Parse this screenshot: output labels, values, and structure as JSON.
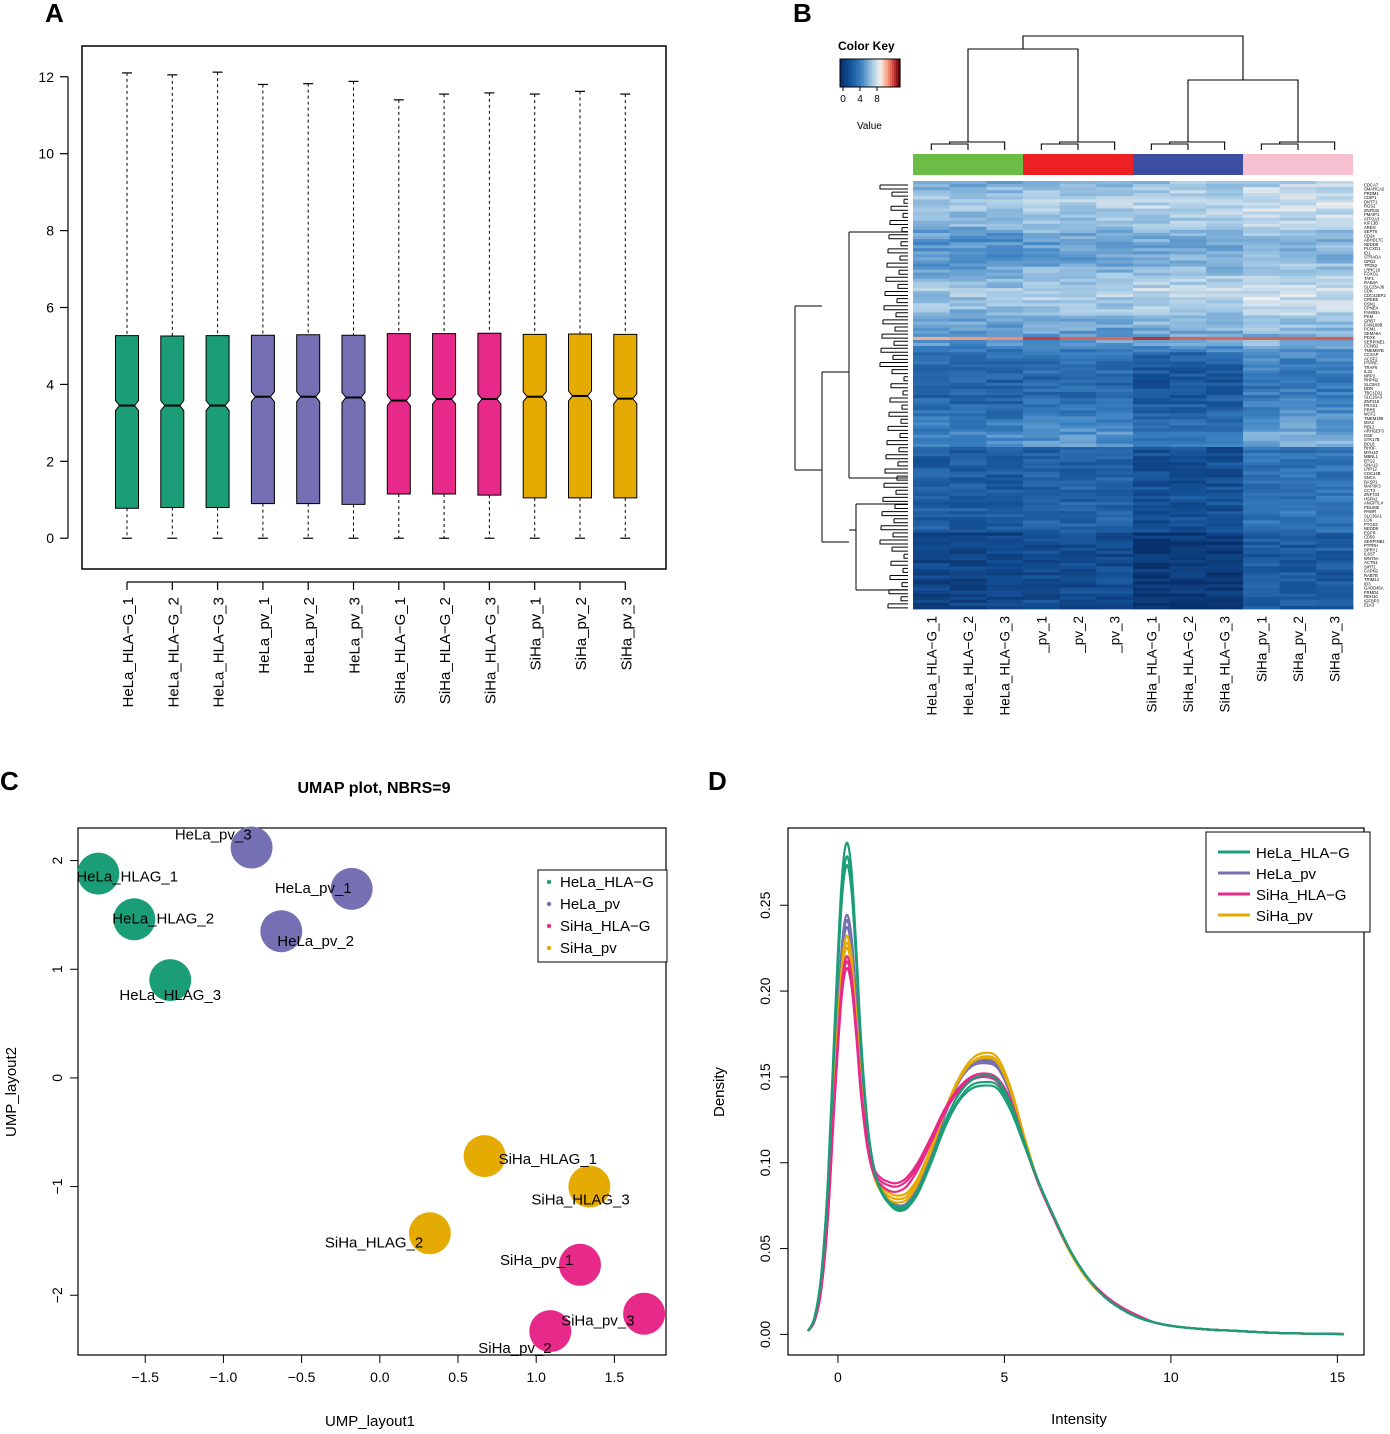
{
  "panels": [
    {
      "label": "A"
    },
    {
      "label": "B"
    },
    {
      "label": "C"
    },
    {
      "label": "D"
    }
  ],
  "colors": {
    "HeLa_HLA-G": "#1b9e77",
    "HeLa_pv": "#7570b3",
    "SiHa_HLA-G": "#e7298a",
    "SiHa_pv": "#e6ab02",
    "axis": "#000000",
    "dendro": "#000000"
  },
  "chart_data": [
    {
      "panel": "A",
      "type": "bar",
      "subtype": "notched-boxplot",
      "title": "",
      "xlabel": "",
      "ylabel": "",
      "ylim": [
        -0.8,
        12.8
      ],
      "yticks": [
        0,
        2,
        4,
        6,
        8,
        10,
        12
      ],
      "boxes": [
        {
          "name": "HeLa_HLA−G_1",
          "group": "HeLa_HLA-G",
          "min": 0,
          "q1": 0.78,
          "median": 3.45,
          "q3": 5.27,
          "max": 12.1
        },
        {
          "name": "HeLa_HLA−G_2",
          "group": "HeLa_HLA-G",
          "min": 0,
          "q1": 0.8,
          "median": 3.45,
          "q3": 5.26,
          "max": 12.05
        },
        {
          "name": "HeLa_HLA−G_3",
          "group": "HeLa_HLA-G",
          "min": 0,
          "q1": 0.8,
          "median": 3.45,
          "q3": 5.27,
          "max": 12.12
        },
        {
          "name": "HeLa_pv_1",
          "group": "HeLa_pv",
          "min": 0,
          "q1": 0.9,
          "median": 3.68,
          "q3": 5.28,
          "max": 11.8
        },
        {
          "name": "HeLa_pv_2",
          "group": "HeLa_pv",
          "min": 0,
          "q1": 0.9,
          "median": 3.68,
          "q3": 5.29,
          "max": 11.82
        },
        {
          "name": "HeLa_pv_3",
          "group": "HeLa_pv",
          "min": 0,
          "q1": 0.88,
          "median": 3.66,
          "q3": 5.28,
          "max": 11.88
        },
        {
          "name": "SiHa_HLA−G_1",
          "group": "SiHa_HLA-G",
          "min": 0,
          "q1": 1.15,
          "median": 3.58,
          "q3": 5.32,
          "max": 11.4
        },
        {
          "name": "SiHa_HLA−G_2",
          "group": "SiHa_HLA-G",
          "min": 0,
          "q1": 1.15,
          "median": 3.62,
          "q3": 5.32,
          "max": 11.55
        },
        {
          "name": "SiHa_HLA−G_3",
          "group": "SiHa_HLA-G",
          "min": 0,
          "q1": 1.12,
          "median": 3.62,
          "q3": 5.33,
          "max": 11.58
        },
        {
          "name": "SiHa_pv_1",
          "group": "SiHa_pv",
          "min": 0,
          "q1": 1.05,
          "median": 3.68,
          "q3": 5.3,
          "max": 11.55
        },
        {
          "name": "SiHa_pv_2",
          "group": "SiHa_pv",
          "min": 0,
          "q1": 1.05,
          "median": 3.7,
          "q3": 5.31,
          "max": 11.62
        },
        {
          "name": "SiHa_pv_3",
          "group": "SiHa_pv",
          "min": 0,
          "q1": 1.05,
          "median": 3.63,
          "q3": 5.3,
          "max": 11.55
        }
      ]
    },
    {
      "panel": "B",
      "type": "heatmap",
      "color_key": {
        "title": "Color Key",
        "ticks": [
          "0",
          "4",
          "8"
        ],
        "label": "Value",
        "min": 0,
        "max": 10
      },
      "column_groups": [
        {
          "group": "HeLa_HLA-G",
          "color": "#6cbd45"
        },
        {
          "group": "HeLa_pv",
          "color": "#ed2124"
        },
        {
          "group": "SiHa_HLA-G",
          "color": "#3b4ea1"
        },
        {
          "group": "SiHa_pv",
          "color": "#f7c0d1"
        }
      ],
      "columns": [
        "HeLa_HLA−G_1",
        "HeLa_HLA−G_2",
        "HeLa_HLA−G_3",
        "_pv_1",
        "_pv_2",
        "_pv_3",
        "SiHa_HLA−G_1",
        "SiHa_HLA−G_2",
        "SiHa_HLA−G_3",
        "SiHa_pv_1",
        "SiHa_pv_2",
        "SiHa_pv_3"
      ],
      "row_labels": [
        "CDCA7",
        "SMARCA2",
        "PRDM1",
        "CDIP1",
        "DNTT1",
        "RGS2",
        "ZNF532",
        "PMAIP1",
        "ATP2A3",
        "KIF13B",
        "AREG",
        "SEPT6",
        "CD24",
        "ABHD17C",
        "NEDD9",
        "PLCXD1",
        "ID1",
        "STRADA",
        "GPD2",
        "TPD52",
        "LRRC19",
        "FOXO1",
        "TAF1",
        "RAB4A",
        "SLC25A36",
        "CDK",
        "CDC42EP2",
        "CREB5",
        "DSN1",
        "CPNE4",
        "FAM83A",
        "PKM",
        "GRB7",
        "FAM169B",
        "PCM1",
        "SEMA6A",
        "PDXK",
        "SERPINE1",
        "CCNB1",
        "TMEM87B",
        "CCSAP",
        "ACSF2",
        "PTPRF",
        "TRAF6",
        "IL32",
        "NRP2",
        "RHPN2",
        "SLC9A3",
        "DDN",
        "TBC1D31",
        "SLC16A3",
        "ZNF318",
        "FRAS1",
        "PRR5",
        "MCF2",
        "TMEM189",
        "MIA3",
        "RBL2",
        "ARHGEF3",
        "DSE",
        "STK17B",
        "BCL6",
        "RHOF",
        "MYH10",
        "MBNL1",
        "BTG2",
        "GNA12",
        "LRP12",
        "CDC14B",
        "SNCA",
        "BASP1",
        "MAP3K3",
        "CCT3",
        "ZNF703",
        "HSPA2",
        "ANGPTL4",
        "PDLIM5",
        "PAWR",
        "SLC36A1",
        "LOX",
        "PTGS2",
        "NEDD9",
        "EGFR",
        "CD59",
        "SERPINB1",
        "PTPRH",
        "SPRY1",
        "IL6ST",
        "WNT5A",
        "ACTN1",
        "SIRT1",
        "CAPN2",
        "RAB7B",
        "TRIM14",
        "ID3",
        "GADD45A",
        "FRMD4",
        "RDH10",
        "IGFBP3",
        "ELK3"
      ]
    },
    {
      "panel": "C",
      "type": "scatter",
      "title": "UMAP plot, NBRS=9",
      "xlabel": "UMP_layout1",
      "ylabel": "UMP_layout2",
      "xlim": [
        -1.93,
        1.83
      ],
      "ylim": [
        -2.55,
        2.3
      ],
      "xticks": [
        "−1.5",
        "−1.0",
        "−0.5",
        "0.0",
        "0.5",
        "1.0",
        "1.5"
      ],
      "yticks": [
        "−2",
        "−1",
        "0",
        "1",
        "2"
      ],
      "legend": {
        "placement": "top-right",
        "entries": [
          "HeLa_HLA−G",
          "HeLa_pv",
          "SiHa_HLA−G",
          "SiHa_pv"
        ]
      },
      "points": [
        {
          "label": "HeLa_HLAG_1",
          "group": "HeLa_HLA-G",
          "x": -1.8,
          "y": 1.88
        },
        {
          "label": "HeLa_HLAG_2",
          "group": "HeLa_HLA-G",
          "x": -1.57,
          "y": 1.46
        },
        {
          "label": "HeLa_HLAG_3",
          "group": "HeLa_HLA-G",
          "x": -1.34,
          "y": 0.9
        },
        {
          "label": "HeLa_pv_3",
          "group": "HeLa_pv",
          "x": -0.82,
          "y": 2.12
        },
        {
          "label": "HeLa_pv_1",
          "group": "HeLa_pv",
          "x": -0.18,
          "y": 1.74
        },
        {
          "label": "HeLa_pv_2",
          "group": "HeLa_pv",
          "x": -0.63,
          "y": 1.35
        },
        {
          "label": "SiHa_HLAG_1",
          "group": "SiHa_pv",
          "x": 0.67,
          "y": -0.72
        },
        {
          "label": "SiHa_HLAG_3",
          "group": "SiHa_pv",
          "x": 1.34,
          "y": -1.0
        },
        {
          "label": "SiHa_HLAG_2",
          "group": "SiHa_pv",
          "x": 0.32,
          "y": -1.43
        },
        {
          "label": "SiHa_pv_1",
          "group": "SiHa_HLA-G",
          "x": 1.28,
          "y": -1.72
        },
        {
          "label": "SiHa_pv_3",
          "group": "SiHa_HLA-G",
          "x": 1.69,
          "y": -2.17
        },
        {
          "label": "SiHa_pv_2",
          "group": "SiHa_HLA-G",
          "x": 1.09,
          "y": -2.33
        }
      ]
    },
    {
      "panel": "D",
      "type": "line",
      "subtype": "density",
      "title": "",
      "xlabel": "Intensity",
      "ylabel": "Density",
      "xlim": [
        -1.5,
        15.8
      ],
      "ylim": [
        -0.012,
        0.295
      ],
      "xticks": [
        "0",
        "5",
        "10",
        "15"
      ],
      "yticks": [
        "0.00",
        "0.05",
        "0.10",
        "0.15",
        "0.20",
        "0.25"
      ],
      "legend": {
        "placement": "top-right",
        "entries": [
          "HeLa_HLA−G",
          "HeLa_pv",
          "SiHa_HLA−G",
          "SiHa_pv"
        ]
      },
      "x": [
        -0.9,
        -0.7,
        -0.5,
        -0.3,
        -0.1,
        0.1,
        0.25,
        0.4,
        0.55,
        0.7,
        0.9,
        1.1,
        1.3,
        1.5,
        1.7,
        1.9,
        2.1,
        2.4,
        2.8,
        3.2,
        3.6,
        4.0,
        4.4,
        4.8,
        5.2,
        5.6,
        6.0,
        6.5,
        7.0,
        7.5,
        8.0,
        8.5,
        9.0,
        9.5,
        10.0,
        11.0,
        12.0,
        13.0,
        14.0,
        15.2
      ],
      "series": [
        {
          "name": "HeLa_HLA-G_1",
          "group": "HeLa_HLA-G",
          "values": [
            0.002,
            0.01,
            0.035,
            0.09,
            0.18,
            0.26,
            0.286,
            0.272,
            0.225,
            0.17,
            0.12,
            0.095,
            0.083,
            0.077,
            0.073,
            0.072,
            0.074,
            0.082,
            0.1,
            0.12,
            0.135,
            0.143,
            0.145,
            0.143,
            0.13,
            0.11,
            0.09,
            0.068,
            0.048,
            0.033,
            0.022,
            0.015,
            0.01,
            0.007,
            0.005,
            0.003,
            0.002,
            0.001,
            0.0005,
            0.0002
          ]
        },
        {
          "name": "HeLa_HLA-G_2",
          "group": "HeLa_HLA-G",
          "values": [
            0.002,
            0.01,
            0.034,
            0.088,
            0.175,
            0.252,
            0.278,
            0.265,
            0.22,
            0.168,
            0.12,
            0.095,
            0.083,
            0.077,
            0.074,
            0.073,
            0.075,
            0.083,
            0.101,
            0.121,
            0.136,
            0.145,
            0.147,
            0.145,
            0.132,
            0.111,
            0.09,
            0.068,
            0.048,
            0.033,
            0.022,
            0.015,
            0.01,
            0.007,
            0.005,
            0.003,
            0.002,
            0.001,
            0.0005,
            0.0002
          ]
        },
        {
          "name": "HeLa_HLA-G_3",
          "group": "HeLa_HLA-G",
          "values": [
            0.002,
            0.01,
            0.034,
            0.087,
            0.172,
            0.248,
            0.273,
            0.26,
            0.217,
            0.166,
            0.119,
            0.095,
            0.084,
            0.078,
            0.075,
            0.074,
            0.076,
            0.084,
            0.102,
            0.123,
            0.139,
            0.148,
            0.151,
            0.148,
            0.134,
            0.112,
            0.09,
            0.068,
            0.048,
            0.033,
            0.022,
            0.015,
            0.01,
            0.007,
            0.005,
            0.003,
            0.002,
            0.001,
            0.0005,
            0.0002
          ]
        },
        {
          "name": "HeLa_pv_1",
          "group": "HeLa_pv",
          "values": [
            0.002,
            0.009,
            0.03,
            0.078,
            0.155,
            0.222,
            0.244,
            0.233,
            0.196,
            0.152,
            0.113,
            0.093,
            0.083,
            0.078,
            0.075,
            0.074,
            0.076,
            0.085,
            0.104,
            0.127,
            0.146,
            0.156,
            0.158,
            0.155,
            0.139,
            0.114,
            0.09,
            0.067,
            0.047,
            0.032,
            0.022,
            0.015,
            0.01,
            0.007,
            0.005,
            0.003,
            0.002,
            0.001,
            0.0005,
            0.0002
          ]
        },
        {
          "name": "HeLa_pv_2",
          "group": "HeLa_pv",
          "values": [
            0.002,
            0.009,
            0.03,
            0.077,
            0.153,
            0.219,
            0.241,
            0.23,
            0.194,
            0.151,
            0.113,
            0.093,
            0.084,
            0.079,
            0.076,
            0.075,
            0.077,
            0.086,
            0.105,
            0.128,
            0.147,
            0.157,
            0.159,
            0.156,
            0.14,
            0.114,
            0.09,
            0.067,
            0.047,
            0.032,
            0.022,
            0.015,
            0.01,
            0.007,
            0.005,
            0.003,
            0.002,
            0.001,
            0.0005,
            0.0002
          ]
        },
        {
          "name": "HeLa_pv_3",
          "group": "HeLa_pv",
          "values": [
            0.002,
            0.009,
            0.029,
            0.075,
            0.15,
            0.215,
            0.237,
            0.226,
            0.191,
            0.149,
            0.112,
            0.093,
            0.084,
            0.079,
            0.076,
            0.075,
            0.077,
            0.085,
            0.104,
            0.127,
            0.146,
            0.157,
            0.16,
            0.157,
            0.14,
            0.114,
            0.09,
            0.067,
            0.047,
            0.032,
            0.022,
            0.015,
            0.01,
            0.007,
            0.005,
            0.003,
            0.002,
            0.001,
            0.0005,
            0.0002
          ]
        },
        {
          "name": "SiHa_HLA-G_1",
          "group": "SiHa_HLA-G",
          "values": [
            0.002,
            0.008,
            0.027,
            0.07,
            0.14,
            0.2,
            0.22,
            0.21,
            0.178,
            0.142,
            0.111,
            0.096,
            0.091,
            0.089,
            0.088,
            0.089,
            0.092,
            0.1,
            0.115,
            0.131,
            0.143,
            0.15,
            0.152,
            0.149,
            0.136,
            0.112,
            0.089,
            0.067,
            0.048,
            0.033,
            0.023,
            0.016,
            0.011,
            0.007,
            0.005,
            0.003,
            0.002,
            0.001,
            0.0005,
            0.0002
          ]
        },
        {
          "name": "SiHa_HLA-G_2",
          "group": "SiHa_HLA-G",
          "values": [
            0.002,
            0.008,
            0.027,
            0.069,
            0.138,
            0.197,
            0.217,
            0.207,
            0.176,
            0.14,
            0.109,
            0.094,
            0.089,
            0.087,
            0.086,
            0.087,
            0.09,
            0.098,
            0.114,
            0.13,
            0.142,
            0.149,
            0.15,
            0.147,
            0.134,
            0.111,
            0.089,
            0.067,
            0.048,
            0.033,
            0.023,
            0.016,
            0.011,
            0.007,
            0.005,
            0.003,
            0.002,
            0.001,
            0.0005,
            0.0002
          ]
        },
        {
          "name": "SiHa_HLA-G_3",
          "group": "SiHa_HLA-G",
          "values": [
            0.002,
            0.008,
            0.026,
            0.068,
            0.136,
            0.194,
            0.213,
            0.204,
            0.174,
            0.138,
            0.107,
            0.092,
            0.087,
            0.084,
            0.083,
            0.084,
            0.087,
            0.096,
            0.112,
            0.129,
            0.141,
            0.148,
            0.15,
            0.147,
            0.134,
            0.111,
            0.089,
            0.067,
            0.048,
            0.033,
            0.023,
            0.016,
            0.011,
            0.007,
            0.005,
            0.003,
            0.002,
            0.001,
            0.0005,
            0.0002
          ]
        },
        {
          "name": "SiHa_pv_1",
          "group": "SiHa_pv",
          "values": [
            0.002,
            0.009,
            0.028,
            0.073,
            0.146,
            0.209,
            0.228,
            0.218,
            0.184,
            0.144,
            0.109,
            0.092,
            0.085,
            0.081,
            0.079,
            0.079,
            0.081,
            0.09,
            0.108,
            0.129,
            0.147,
            0.158,
            0.162,
            0.159,
            0.142,
            0.115,
            0.09,
            0.067,
            0.047,
            0.032,
            0.022,
            0.015,
            0.01,
            0.007,
            0.005,
            0.003,
            0.002,
            0.001,
            0.0005,
            0.0002
          ]
        },
        {
          "name": "SiHa_pv_2",
          "group": "SiHa_pv",
          "values": [
            0.002,
            0.009,
            0.029,
            0.074,
            0.148,
            0.211,
            0.232,
            0.221,
            0.186,
            0.145,
            0.109,
            0.091,
            0.083,
            0.079,
            0.077,
            0.077,
            0.079,
            0.088,
            0.107,
            0.129,
            0.148,
            0.16,
            0.164,
            0.161,
            0.143,
            0.115,
            0.09,
            0.067,
            0.047,
            0.032,
            0.022,
            0.015,
            0.01,
            0.007,
            0.005,
            0.003,
            0.002,
            0.001,
            0.0005,
            0.0002
          ]
        },
        {
          "name": "SiHa_pv_3",
          "group": "SiHa_pv",
          "values": [
            0.002,
            0.009,
            0.028,
            0.072,
            0.144,
            0.206,
            0.225,
            0.215,
            0.182,
            0.143,
            0.109,
            0.092,
            0.086,
            0.083,
            0.081,
            0.081,
            0.083,
            0.091,
            0.109,
            0.13,
            0.148,
            0.158,
            0.161,
            0.158,
            0.141,
            0.114,
            0.09,
            0.067,
            0.047,
            0.032,
            0.022,
            0.015,
            0.01,
            0.007,
            0.005,
            0.003,
            0.002,
            0.001,
            0.0005,
            0.0002
          ]
        }
      ]
    }
  ]
}
